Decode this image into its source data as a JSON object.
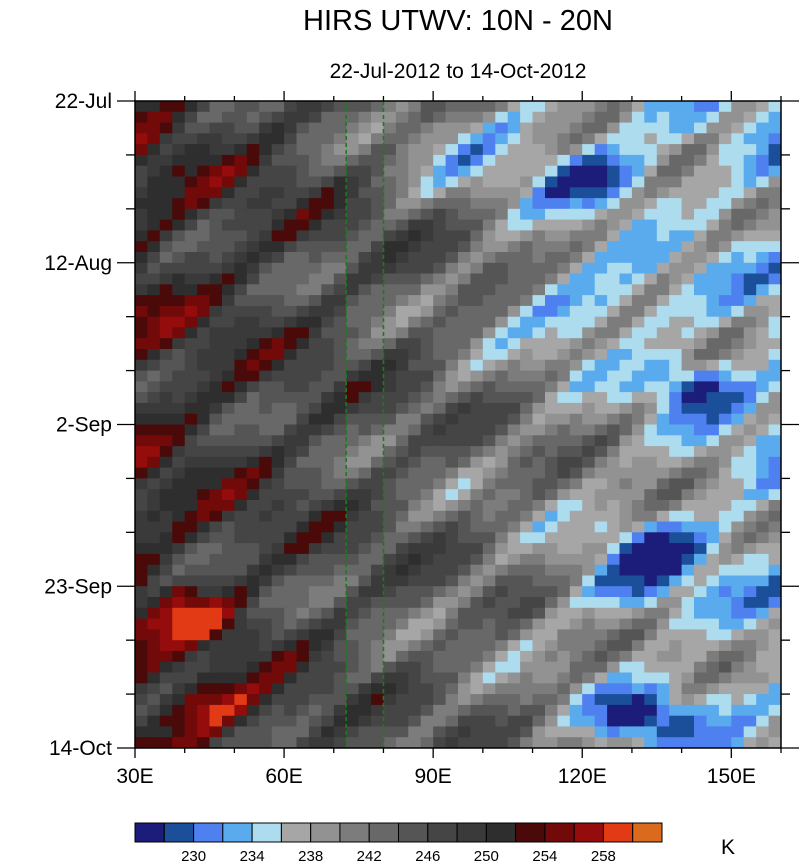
{
  "chart_data": {
    "type": "heatmap",
    "title": "HIRS UTWV: 10N - 20N",
    "subtitle": "22-Jul-2012 to 14-Oct-2012",
    "x_axis": {
      "range": [
        30,
        160
      ],
      "ticks": [
        {
          "value": 30,
          "label": "30E"
        },
        {
          "value": 60,
          "label": "60E"
        },
        {
          "value": 90,
          "label": "90E"
        },
        {
          "value": 120,
          "label": "120E"
        },
        {
          "value": 150,
          "label": "150E"
        }
      ],
      "minor_step": 10
    },
    "y_axis": {
      "range_days": [
        0,
        84
      ],
      "ticks": [
        {
          "value": 0,
          "label": "22-Jul"
        },
        {
          "value": 21,
          "label": "12-Aug"
        },
        {
          "value": 42,
          "label": "2-Sep"
        },
        {
          "value": 63,
          "label": "23-Sep"
        },
        {
          "value": 84,
          "label": "14-Oct"
        }
      ],
      "minor_step": 7
    },
    "reference_lines": [
      {
        "x": 72.5,
        "color": "#1e7a1e",
        "style": "dashed"
      },
      {
        "x": 80,
        "color": "#1e7a1e",
        "style": "dashed"
      }
    ],
    "colorbar": {
      "unit": "K",
      "levels": [
        228,
        230,
        232,
        234,
        236,
        238,
        240,
        242,
        244,
        246,
        248,
        250,
        252,
        254,
        256,
        258
      ],
      "labels": [
        {
          "value": 230,
          "label": "230"
        },
        {
          "value": 234,
          "label": "234"
        },
        {
          "value": 238,
          "label": "238"
        },
        {
          "value": 242,
          "label": "242"
        },
        {
          "value": 246,
          "label": "246"
        },
        {
          "value": 250,
          "label": "250"
        },
        {
          "value": 254,
          "label": "254"
        },
        {
          "value": 258,
          "label": "258"
        }
      ],
      "colors": [
        "#1c1c7a",
        "#1b4f9a",
        "#4f80f0",
        "#5aaaee",
        "#acdcee",
        "#a6a6a6",
        "#929292",
        "#7c7c7c",
        "#686868",
        "#555555",
        "#454545",
        "#3a3a3a",
        "#2e2e2e",
        "#4a0a0a",
        "#720a0a",
        "#950c0c",
        "#e33a16",
        "#da6a1e"
      ]
    }
  }
}
